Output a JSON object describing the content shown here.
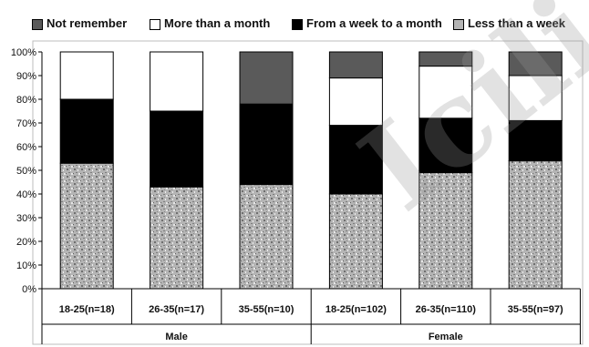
{
  "chart_data": {
    "type": "bar",
    "stacked": true,
    "categories": [
      "18-25(n=18)",
      "26-35(n=17)",
      "35-55(n=10)",
      "18-25(n=102)",
      "26-35(n=110)",
      "35-55(n=97)"
    ],
    "groups": [
      {
        "label": "Male",
        "categories": [
          "18-25(n=18)",
          "26-35(n=17)",
          "35-55(n=10)"
        ]
      },
      {
        "label": "Female",
        "categories": [
          "18-25(n=102)",
          "26-35(n=110)",
          "35-55(n=97)"
        ]
      }
    ],
    "series": [
      {
        "name": "Less than a week",
        "values": [
          53,
          43,
          44,
          40,
          49,
          54
        ],
        "pattern": "gray-speckle"
      },
      {
        "name": "From a week to a month",
        "values": [
          27,
          32,
          34,
          29,
          23,
          17
        ],
        "color": "#000000"
      },
      {
        "name": "More than a month",
        "values": [
          20,
          25,
          0,
          20,
          22,
          19
        ],
        "color": "#ffffff"
      },
      {
        "name": "Not remember",
        "values": [
          0,
          0,
          22,
          11,
          6,
          10
        ],
        "color": "#5a5a5a"
      }
    ],
    "legend_order": [
      "Not remember",
      "More than a month",
      "From a week to a month",
      "Less than a week"
    ],
    "legend_position": "top",
    "y_ticks": [
      "0%",
      "10%",
      "20%",
      "30%",
      "40%",
      "50%",
      "60%",
      "70%",
      "80%",
      "90%",
      "100%"
    ],
    "ylim": [
      0,
      100
    ],
    "grid": false
  },
  "watermark_text": "IciliVi"
}
